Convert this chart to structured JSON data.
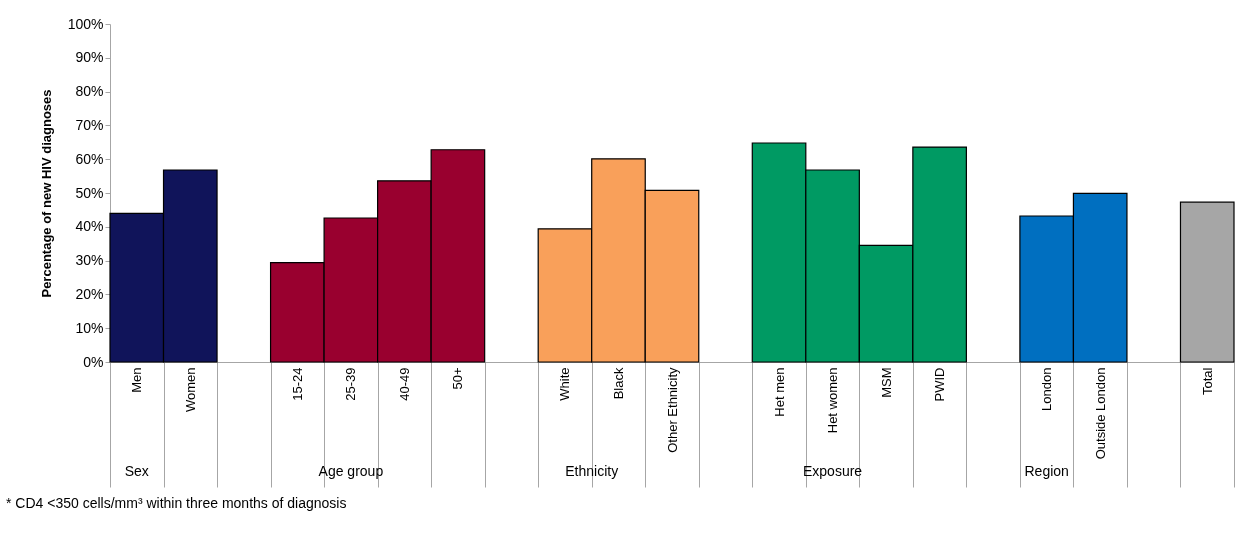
{
  "chart_data": {
    "type": "bar",
    "ylabel": "Percentage of new HIV diagnoses",
    "categories": [
      "Men",
      "Women",
      null,
      "15-24",
      "25-39",
      "40-49",
      "50+",
      null,
      "White",
      "Black",
      "Other Ethnicity",
      null,
      "Het men",
      "Het women",
      "MSM",
      "PWID",
      null,
      "London",
      "Outside London",
      null,
      "Total"
    ],
    "series": [
      {
        "name": "Sex",
        "color": "#10145a",
        "values": [
          44.0,
          56.8,
          null,
          null,
          null,
          null,
          null,
          null,
          null,
          null,
          null,
          null,
          null,
          null,
          null,
          null,
          null,
          null,
          null,
          null,
          null
        ]
      },
      {
        "name": "Age group",
        "color": "#99002f",
        "values": [
          null,
          null,
          null,
          29.4,
          42.6,
          53.6,
          62.8,
          null,
          null,
          null,
          null,
          null,
          null,
          null,
          null,
          null,
          null,
          null,
          null,
          null,
          null
        ]
      },
      {
        "name": "Ethnicity",
        "color": "#f9a05a",
        "values": [
          null,
          null,
          null,
          null,
          null,
          null,
          null,
          null,
          39.4,
          60.1,
          50.8,
          null,
          null,
          null,
          null,
          null,
          null,
          null,
          null,
          null,
          null
        ]
      },
      {
        "name": "Exposure",
        "color": "#009a63",
        "values": [
          null,
          null,
          null,
          null,
          null,
          null,
          null,
          null,
          null,
          null,
          null,
          null,
          64.8,
          56.8,
          34.5,
          63.6,
          null,
          null,
          null,
          null,
          null
        ]
      },
      {
        "name": "Region",
        "color": "#006fc0",
        "values": [
          null,
          null,
          null,
          null,
          null,
          null,
          null,
          null,
          null,
          null,
          null,
          null,
          null,
          null,
          null,
          null,
          null,
          43.2,
          49.9,
          null,
          null
        ]
      },
      {
        "color": "#a6a6a6",
        "values": [
          null,
          null,
          null,
          null,
          null,
          null,
          null,
          null,
          null,
          null,
          null,
          null,
          null,
          null,
          null,
          null,
          null,
          null,
          null,
          null,
          47.3
        ]
      }
    ],
    "ylim": [
      0,
      100
    ],
    "yticks": [
      {
        "value": 0,
        "label": "0%"
      },
      {
        "value": 10,
        "label": "10%"
      },
      {
        "value": 20,
        "label": "20%"
      },
      {
        "value": 30,
        "label": "30%"
      },
      {
        "value": 40,
        "label": "40%"
      },
      {
        "value": 50,
        "label": "50%"
      },
      {
        "value": 60,
        "label": "60%"
      },
      {
        "value": 70,
        "label": "70%"
      },
      {
        "value": 80,
        "label": "80%"
      },
      {
        "value": 90,
        "label": "90%"
      },
      {
        "value": 100,
        "label": "100%"
      }
    ],
    "grid": false,
    "annotations": [
      "* CD4 <350 cells/mm³ within three months of diagnosis"
    ]
  }
}
